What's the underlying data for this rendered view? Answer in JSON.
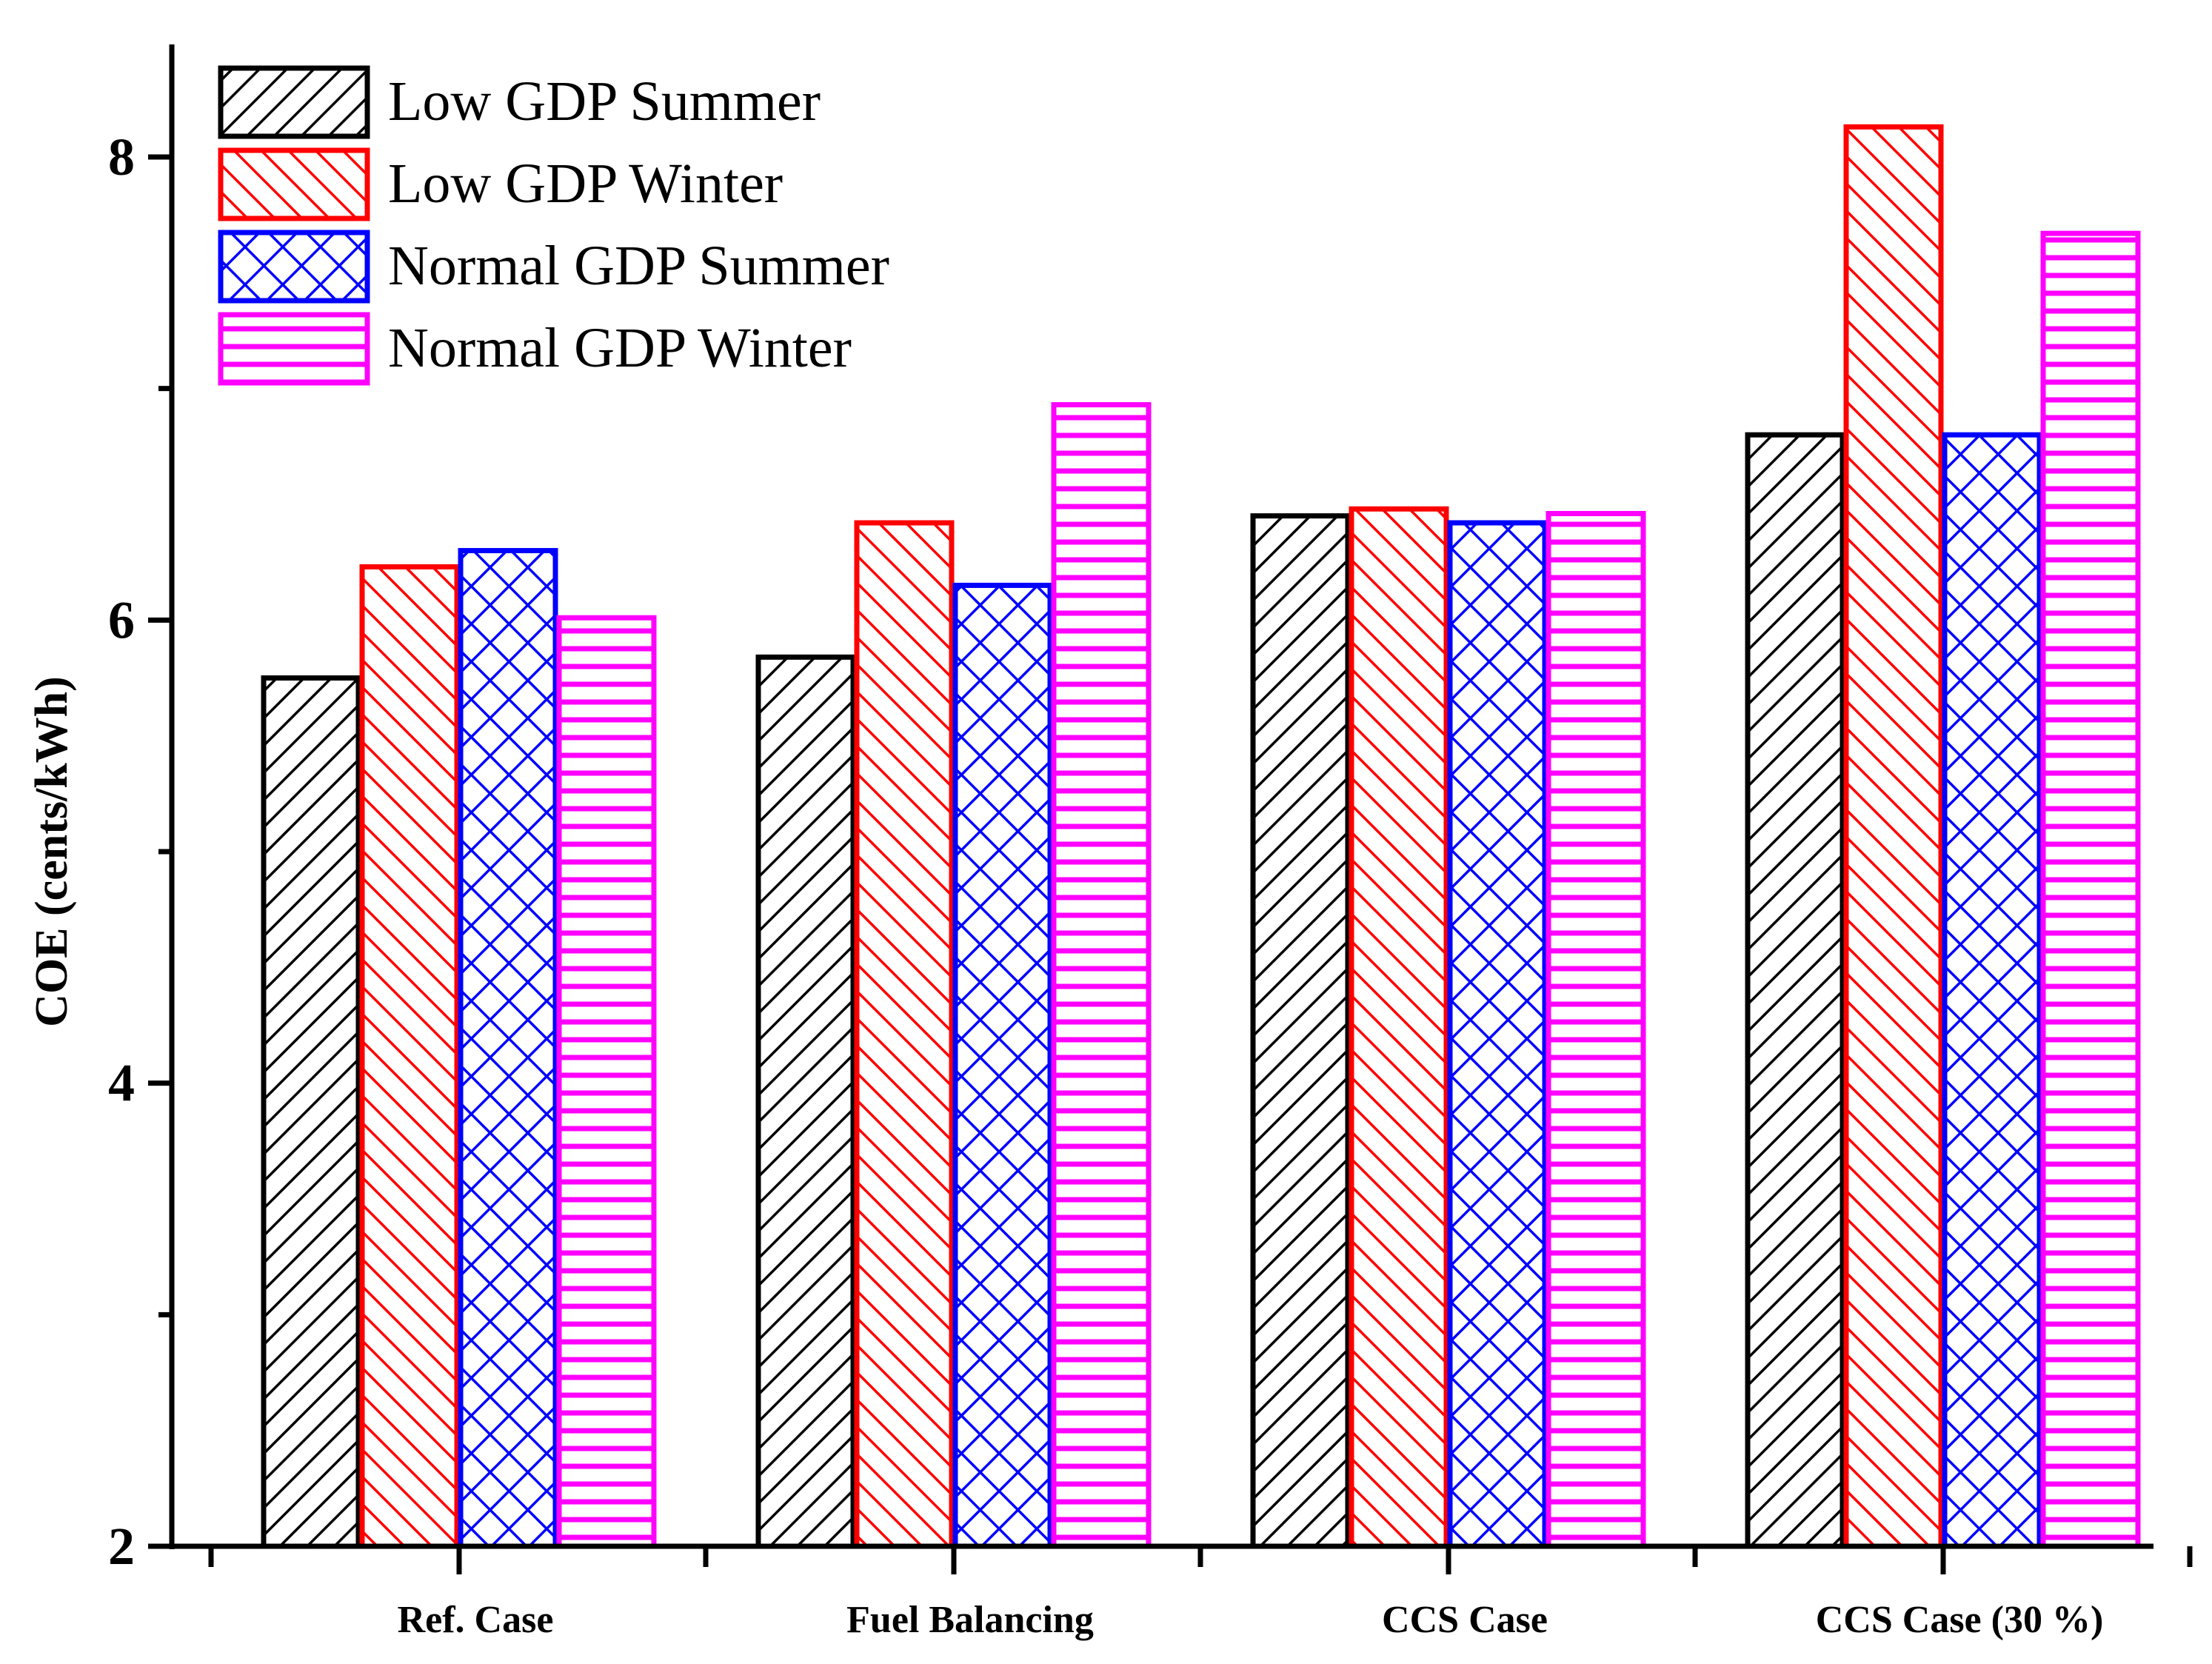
{
  "chart_data": {
    "type": "bar",
    "title": "",
    "xlabel": "",
    "ylabel": "COE (cents/kWh)",
    "ylim": [
      2,
      8.5
    ],
    "yticks": [
      2,
      4,
      6,
      8
    ],
    "grid": false,
    "legend_position": "top-left",
    "categories": [
      "Ref. Case",
      "Fuel Balancing",
      "CCS Case",
      "CCS Case (30 %)"
    ],
    "series": [
      {
        "name": "Low GDP Summer",
        "values": [
          5.75,
          5.84,
          6.45,
          6.8
        ],
        "color": "#000000",
        "pattern": "diagonal-hatch"
      },
      {
        "name": "Low GDP Winter",
        "values": [
          6.23,
          6.42,
          6.48,
          8.13
        ],
        "color": "#ff0000",
        "pattern": "diagonal-hatch"
      },
      {
        "name": "Normal GDP Summer",
        "values": [
          6.3,
          6.15,
          6.42,
          6.8
        ],
        "color": "#0000ff",
        "pattern": "cross-hatch"
      },
      {
        "name": "Normal GDP Winter",
        "values": [
          6.01,
          6.93,
          6.46,
          7.67
        ],
        "color": "#ff00ff",
        "pattern": "horizontal-lines"
      }
    ]
  }
}
